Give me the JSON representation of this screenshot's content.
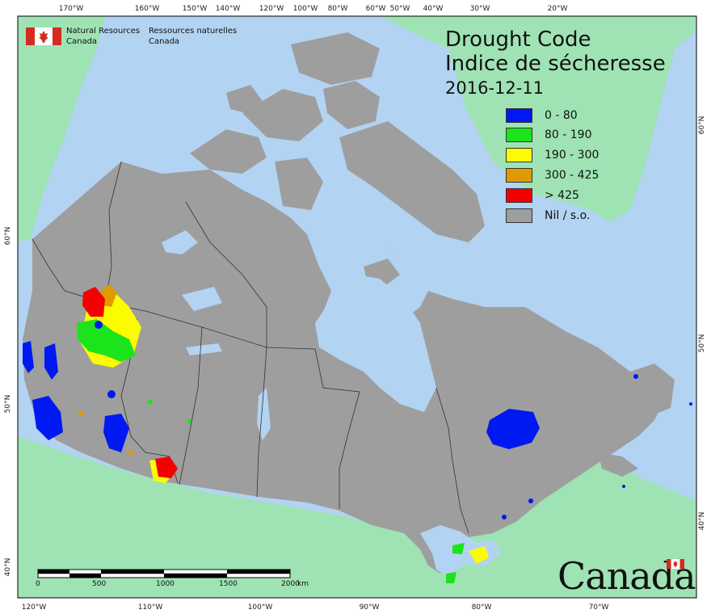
{
  "title": {
    "english": "Drought Code",
    "french": "Indice de sécheresse",
    "date": "2016-12-11"
  },
  "agency": {
    "english_line1": "Natural Resources",
    "english_line2": "Canada",
    "french_line1": "Ressources naturelles",
    "french_line2": "Canada"
  },
  "wordmark": "Canada",
  "legend": [
    {
      "label": "0 - 80",
      "color": "#0019f0"
    },
    {
      "label": "80 - 190",
      "color": "#1be41b"
    },
    {
      "label": "190 - 300",
      "color": "#fcfc00"
    },
    {
      "label": "300 - 425",
      "color": "#e09a00"
    },
    {
      "label": "> 425",
      "color": "#f40000"
    },
    {
      "label": "Nil / s.o.",
      "color": "#9e9e9e"
    }
  ],
  "colors": {
    "ocean": "#b3d3f2",
    "land_outside": "#9fe3b4",
    "canada_land": "#9e9e9e",
    "water_inland": "#b3d3f2",
    "border": "#333333"
  },
  "top_ticks": [
    "170°W",
    "160°W",
    "150°W",
    "140°W",
    "120°W",
    "100°W",
    "80°W",
    "60°W",
    "50°W",
    "40°W",
    "30°W",
    "20°W"
  ],
  "bottom_ticks": [
    "120°W",
    "110°W",
    "100°W",
    "90°W",
    "80°W",
    "70°W"
  ],
  "left_ticks": [
    "60°N",
    "50°N",
    "40°N"
  ],
  "right_ticks": [
    "60°N",
    "50°N",
    "40°N"
  ],
  "scale": {
    "labels": [
      "0",
      "500",
      "1000",
      "1500",
      "2000"
    ],
    "unit": "km"
  }
}
